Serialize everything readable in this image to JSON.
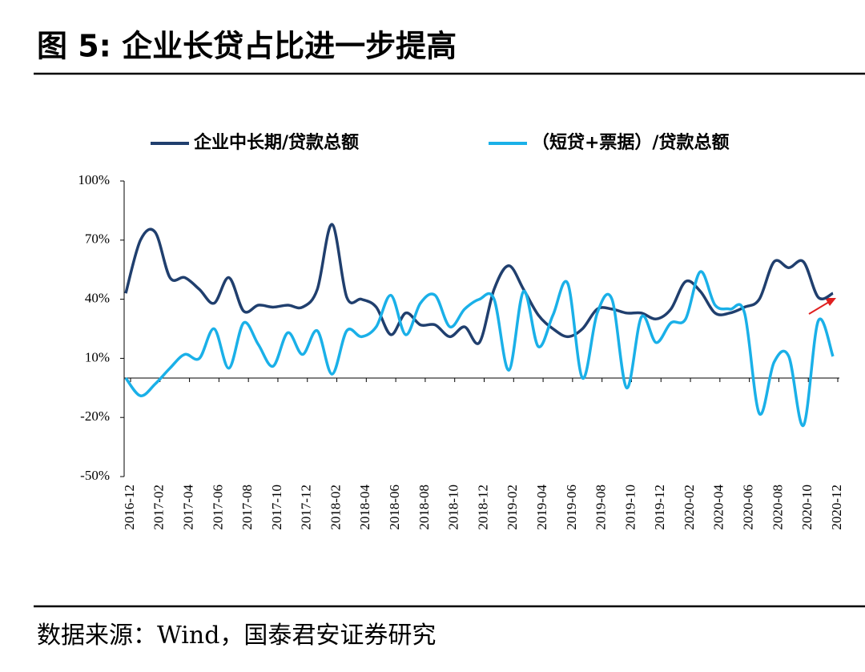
{
  "chart_data": {
    "type": "line",
    "title": "图 5:  企业长贷占比进一步提高",
    "source": "数据来源：Wind，国泰君安证券研究",
    "categories": [
      "2016-12",
      null,
      "2017-02",
      null,
      "2017-04",
      null,
      "2017-06",
      null,
      "2017-08",
      null,
      "2017-10",
      null,
      "2017-12",
      null,
      "2018-02",
      null,
      "2018-04",
      null,
      "2018-06",
      null,
      "2018-08",
      null,
      "2018-10",
      null,
      "2018-12",
      null,
      "2019-02",
      null,
      "2019-04",
      null,
      "2019-06",
      null,
      "2019-08",
      null,
      "2019-10",
      null,
      "2019-12",
      null,
      "2020-02",
      null,
      "2020-04",
      null,
      "2020-06",
      null,
      "2020-08",
      null,
      "2020-10",
      null,
      "2020-12"
    ],
    "series": [
      {
        "name": "企业中长期/贷款总额",
        "color": "#203f6e",
        "values": [
          43,
          70,
          74,
          51,
          51,
          45,
          38,
          51,
          34,
          37,
          36,
          37,
          36,
          45,
          78,
          41,
          40,
          36,
          22,
          33,
          27,
          27,
          21,
          26,
          18,
          45,
          57,
          45,
          32,
          25,
          21,
          25,
          35,
          35,
          33,
          33,
          30,
          35,
          49,
          44,
          33,
          33,
          36,
          40,
          59,
          56,
          59,
          41,
          43
        ]
      },
      {
        "name": "（短贷+票据）/贷款总额",
        "color": "#1ab0e8",
        "values": [
          0,
          -9,
          -3,
          5,
          12,
          10,
          25,
          5,
          28,
          17,
          6,
          23,
          12,
          24,
          2,
          24,
          21,
          26,
          42,
          22,
          38,
          42,
          26,
          35,
          40,
          40,
          4,
          44,
          16,
          32,
          48,
          0,
          33,
          40,
          -5,
          31,
          18,
          28,
          30,
          54,
          37,
          35,
          33,
          -18,
          8,
          11,
          -24,
          29,
          11
        ]
      }
    ],
    "ylim": [
      -50,
      100
    ],
    "yticks": [
      {
        "value": -50,
        "label": "-50%"
      },
      {
        "value": -20,
        "label": "-20%"
      },
      {
        "value": 10,
        "label": "10%"
      },
      {
        "value": 40,
        "label": "40%"
      },
      {
        "value": 70,
        "label": "70%"
      },
      {
        "value": 100,
        "label": "100%"
      }
    ],
    "legend": "top"
  }
}
